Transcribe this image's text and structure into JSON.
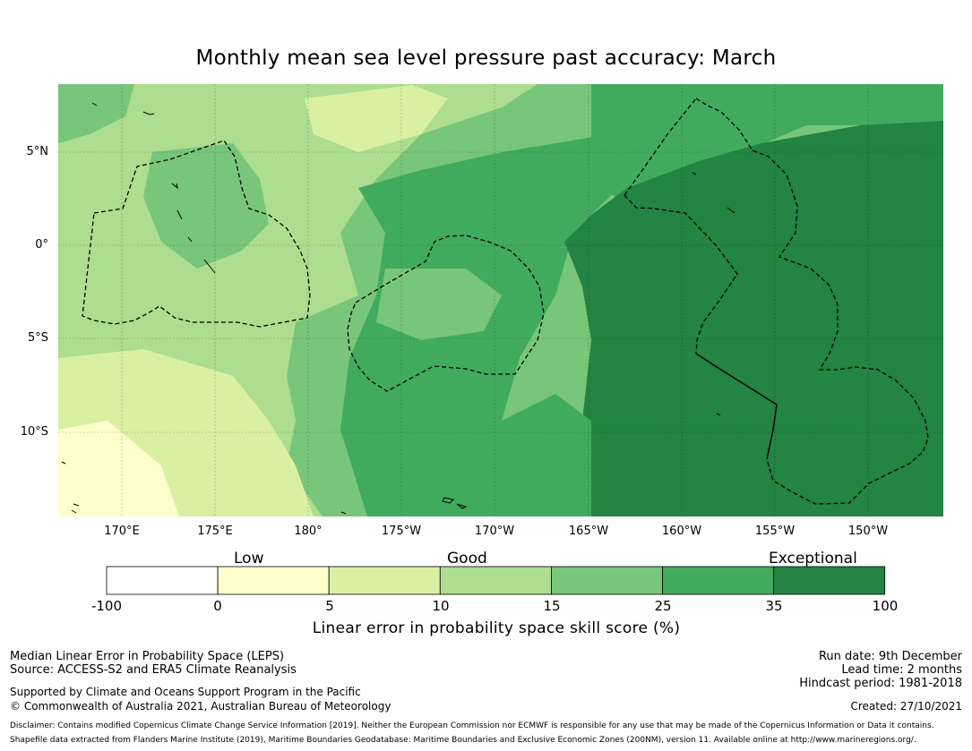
{
  "title": "Monthly mean sea level pressure past accuracy: March",
  "map": {
    "lat_labels": [
      "5°N",
      "0°",
      "5°S",
      "10°S"
    ],
    "lon_labels": [
      "170°E",
      "175°E",
      "180°",
      "175°W",
      "170°W",
      "165°W",
      "160°W",
      "155°W",
      "150°W"
    ]
  },
  "colorbar": {
    "categories": [
      "Low",
      "Good",
      "Exceptional"
    ],
    "ticks": [
      "-100",
      "0",
      "5",
      "10",
      "15",
      "25",
      "35",
      "100"
    ],
    "bins": [
      {
        "range": "-100 to 0",
        "color": "#ffffff"
      },
      {
        "range": "0 to 5",
        "color": "#ffffcc"
      },
      {
        "range": "5 to 10",
        "color": "#d9f0a3"
      },
      {
        "range": "10 to 15",
        "color": "#addd8e"
      },
      {
        "range": "15 to 25",
        "color": "#78c679"
      },
      {
        "range": "25 to 35",
        "color": "#41ab5d"
      },
      {
        "range": "35 to 100",
        "color": "#238443"
      }
    ],
    "label": "Linear error in probability space skill score (%)"
  },
  "info": {
    "line1": "Median Linear Error in Probability Space (LEPS)",
    "line2": "Source: ACCESS-S2 and ERA5 Climate Reanalysis",
    "line3": "Supported by Climate and Oceans Support Program in the Pacific",
    "line4": "© Commonwealth of Australia 2021, Australian Bureau of Meteorology",
    "run_date": "Run date: 9th December",
    "lead_time": "Lead time: 2 months",
    "hindcast": "Hindcast period: 1981-2018",
    "created": "Created: 27/10/2021",
    "disclaimer": "Disclaimer: Contains modified Copernicus Climate Change Service Information [2019]. Neither the European Commission nor ECMWF is responsible for any use that may be made of the Copernicus Information or Data it contains.",
    "shapefile": "Shapefile data extracted from Flanders Marine Institute (2019), Maritime Boundaries Geodatabase: Maritime Boundaries and Exclusive Economic Zones (200NM), version 11. Available online at http://www.marineregions.org/."
  }
}
